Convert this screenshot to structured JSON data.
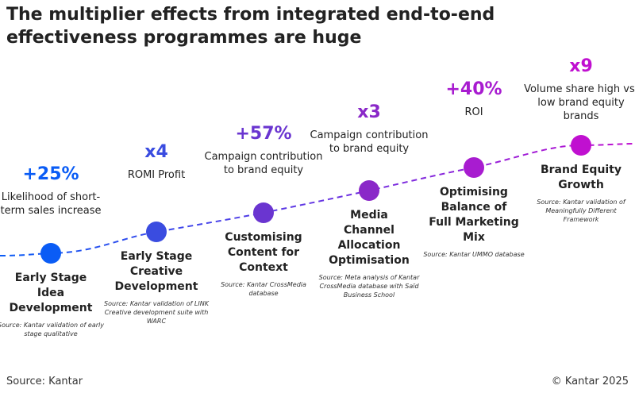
{
  "title": "The multiplier effects from integrated end-to-end effectiveness programmes are huge",
  "stages": [
    {
      "value": "+25%",
      "description": "Likelihood of short-term sales increase",
      "name": "Early Stage Idea Development",
      "source": "Source: Kantar validation of early stage qualitative",
      "color": "#0a5cf5"
    },
    {
      "value": "x4",
      "description": "ROMI Profit",
      "name": "Early Stage Creative Development",
      "source": "Source: Kantar validation of LINK Creative development suite with WARC",
      "color": "#3a4ce0"
    },
    {
      "value": "+57%",
      "description": "Campaign contribution to brand equity",
      "name": "Customising Content for Context",
      "source": "Source: Kantar CrossMedia database",
      "color": "#6a35d0"
    },
    {
      "value": "x3",
      "description": "Campaign contribution to brand equity",
      "name": "Media Channel Allocation Optimisation",
      "source": "Source: Meta analysis of Kantar CrossMedia database with Saïd Business School",
      "color": "#8a28c8"
    },
    {
      "value": "+40%",
      "description": "ROI",
      "name": "Optimising Balance of Full Marketing Mix",
      "source": "Source: Kantar UMMO database",
      "color": "#a81cd0"
    },
    {
      "value": "x9",
      "description": "Volume share high vs. low brand equity brands",
      "name": "Brand Equity Growth",
      "source": "Source: Kantar validation of Meaningfully Different Framework",
      "color": "#c010d0"
    }
  ],
  "footer": {
    "source": "Source: Kantar",
    "copyright": "© Kantar 2025"
  }
}
